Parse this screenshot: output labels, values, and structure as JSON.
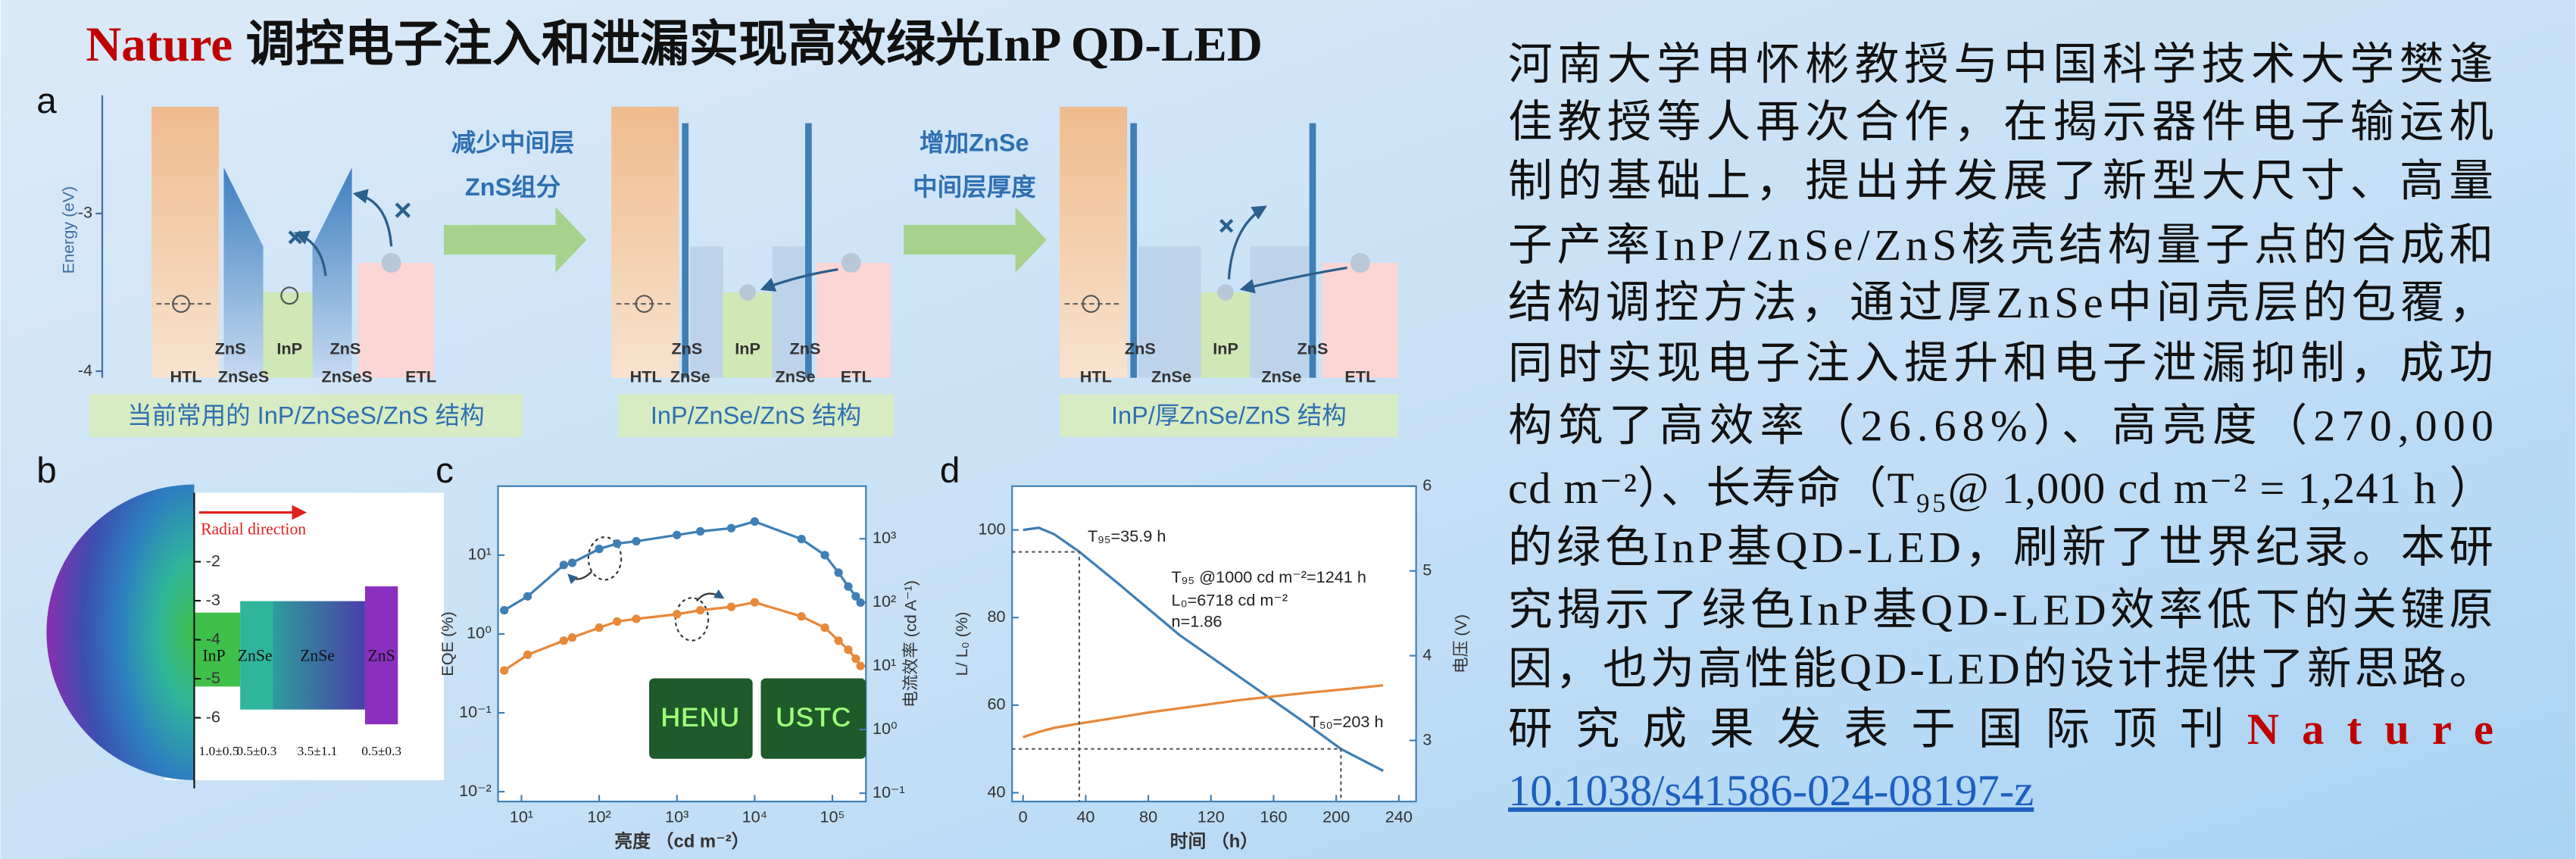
{
  "title": {
    "highlight": "Nature",
    "text": "调控电子注入和泄漏实现高效绿光InP QD-LED"
  },
  "panel_a": {
    "label": "a",
    "y_label": "Energy (eV)",
    "yticks": [
      -3,
      -4
    ],
    "structures": [
      {
        "labels": [
          "HTL",
          "ZnS",
          "ZnSeS",
          "InP",
          "ZnS",
          "ZnSeS",
          "ETL"
        ],
        "caption": "当前常用的 InP/ZnSeS/ZnS 结构"
      },
      {
        "labels": [
          "HTL",
          "ZnS",
          "ZnSe",
          "InP",
          "ZnS",
          "ZnSe",
          "ETL"
        ],
        "caption": "InP/ZnSe/ZnS 结构"
      },
      {
        "labels": [
          "HTL",
          "ZnS",
          "ZnSe",
          "InP",
          "ZnS",
          "ZnSe",
          "ETL"
        ],
        "caption": "InP/厚ZnSe/ZnS 结构"
      }
    ],
    "steps": [
      [
        "减少中间层",
        "ZnS组分"
      ],
      [
        "增加ZnSe",
        "中间层厚度"
      ]
    ]
  },
  "panel_b": {
    "label": "b",
    "direction": "Radial direction",
    "yticks": [
      -2,
      -3,
      -4,
      -5,
      -6
    ],
    "layers": [
      "InP",
      "ZnSe",
      "ZnSe",
      "ZnS"
    ],
    "thickness": [
      "1.0±0.5",
      "0.5±0.3",
      "3.5±1.1",
      "0.5±0.3"
    ]
  },
  "chart_data": [
    {
      "type": "scatter",
      "label": "c",
      "x_label": "亮度 （cd m⁻²）",
      "y_label": "EQE (%)",
      "y2_label": "电流效率 (cd A⁻¹)",
      "log_x": true,
      "log_y": true,
      "xlim": [
        5,
        270000
      ],
      "ylim": [
        0.0075,
        75
      ],
      "y2lim": [
        0.074,
        6700
      ],
      "xticks": [
        {
          "value": 10,
          "label": "10¹"
        },
        {
          "value": 100,
          "label": "10²"
        },
        {
          "value": 1000,
          "label": "10³"
        },
        {
          "value": 10000,
          "label": "10⁴"
        },
        {
          "value": 100000,
          "label": "10⁵"
        }
      ],
      "yticks": [
        {
          "value": 0.01,
          "label": "10⁻²"
        },
        {
          "value": 0.1,
          "label": "10⁻¹"
        },
        {
          "value": 1,
          "label": "10⁰"
        },
        {
          "value": 10,
          "label": "10¹"
        }
      ],
      "y2ticks": [
        {
          "value": 0.1,
          "label": "10⁻¹"
        },
        {
          "value": 1,
          "label": "10⁰"
        },
        {
          "value": 10,
          "label": "10¹"
        },
        {
          "value": 100,
          "label": "10²"
        },
        {
          "value": 1000,
          "label": "10³"
        }
      ],
      "x": [
        6,
        12,
        35,
        45,
        100,
        170,
        300,
        1000,
        2000,
        5000,
        10000,
        40000,
        80000,
        120000,
        160000,
        200000,
        230000
      ],
      "series": [
        {
          "color": "#3f7fb5",
          "values": [
            2.0,
            3.0,
            7.5,
            8.0,
            12,
            14,
            15,
            18,
            20,
            22,
            26.7,
            16,
            10,
            6,
            4,
            3,
            2.5
          ]
        },
        {
          "color": "#e8883a",
          "axis": "y2",
          "values": [
            8.5,
            15,
            25,
            28,
            40,
            50,
            55,
            65,
            75,
            85,
            100,
            60,
            40,
            25,
            18,
            13,
            10
          ]
        }
      ],
      "insets": [
        "HENU",
        "USTC"
      ]
    },
    {
      "type": "line",
      "label": "d",
      "x_label": "时间 （h）",
      "y_label": "L/ L₀ (%)",
      "y2_label": "电压 (V)",
      "xlim": [
        -7,
        251
      ],
      "ylim": [
        38,
        110
      ],
      "y2lim": [
        2.28,
        6
      ],
      "xticks": [
        0,
        40,
        80,
        120,
        160,
        200,
        240
      ],
      "yticks": [
        40,
        60,
        80,
        100
      ],
      "y2ticks": [
        3,
        4,
        5,
        6
      ],
      "x": [
        0,
        10,
        20,
        36,
        60,
        80,
        100,
        120,
        140,
        160,
        180,
        203,
        230
      ],
      "series": [
        {
          "color": "#3f7fb5",
          "values": [
            100,
            100.5,
            99,
            95,
            88,
            82,
            76,
            71,
            66,
            61,
            56,
            50,
            45
          ]
        },
        {
          "color": "#e8883a",
          "axis": "y2",
          "values": [
            3.04,
            3.1,
            3.15,
            3.2,
            3.27,
            3.33,
            3.38,
            3.43,
            3.48,
            3.52,
            3.56,
            3.6,
            3.65
          ]
        }
      ],
      "guides": [
        {
          "x": 35.9,
          "y": 95
        },
        {
          "x": 203,
          "y": 50
        }
      ],
      "annotations": [
        "T₉₅=35.9 h",
        "T₉₅ @1000 cd m⁻²=1241 h",
        "L₀=6718 cd m⁻²",
        "n=1.86",
        "T₅₀=203 h"
      ]
    }
  ],
  "text": {
    "lines": [
      "河南大学申怀彬教授与中国科学技术大学樊逢",
      "佳教授等人再次合作，在揭示器件电子输运机",
      "制的基础上，提出并发展了新型大尺寸、高量",
      "子产率InP/ZnSe/ZnS核壳结构量子点的合成和",
      "结构调控方法，通过厚ZnSe中间壳层的包覆，",
      "同时实现电子注入提升和电子泄漏抑制，成功",
      "构筑了高效率（26.68%）、高亮度（270,000",
      "cd m⁻²）、长寿命（T₉₅@ 1,000 cd m⁻² = 1,241 h ）",
      "的绿色InP基QD-LED，刷新了世界纪录。本研",
      "究揭示了绿色InP基QD-LED效率低下的关键原",
      "因，也为高性能QD-LED的设计提供了新思路。"
    ],
    "publish": "研究成果发表于国际顶刊",
    "journal": "Nature",
    "doi": "10.1038/s41586-024-08197-z"
  }
}
